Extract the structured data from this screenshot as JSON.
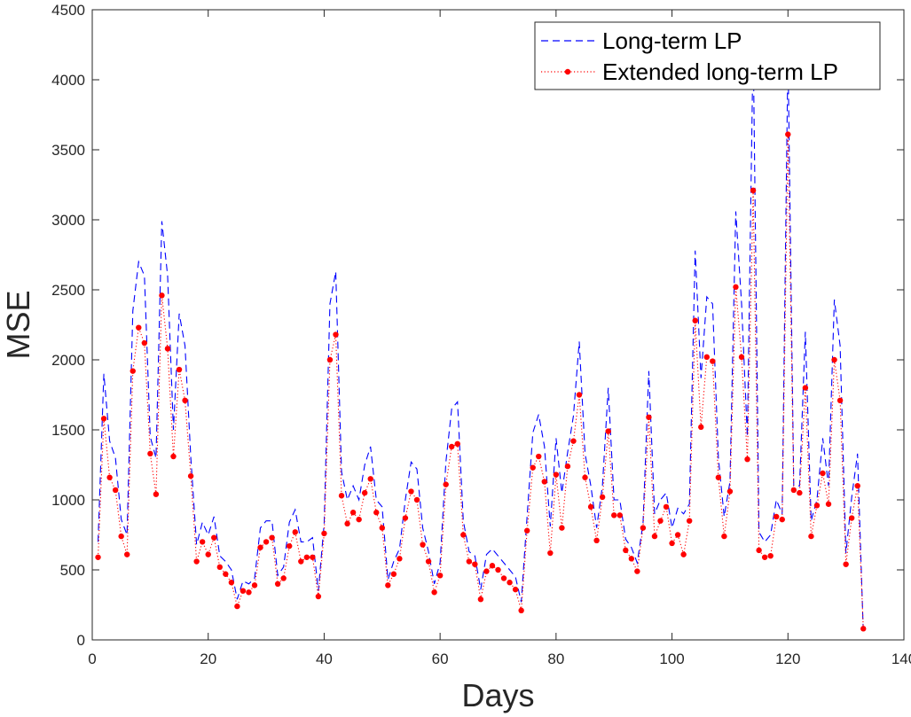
{
  "chart_data": {
    "type": "line",
    "xlabel": "Days",
    "ylabel": "MSE",
    "xlim": [
      0,
      140
    ],
    "ylim": [
      0,
      4500
    ],
    "xticks": [
      0,
      20,
      40,
      60,
      80,
      100,
      120,
      140
    ],
    "yticks": [
      0,
      500,
      1000,
      1500,
      2000,
      2500,
      3000,
      3500,
      4000,
      4500
    ],
    "legend_position": "top-right",
    "grid": false,
    "series": [
      {
        "name": "Long-term LP",
        "color": "#0000ff",
        "style": "dashed",
        "x": [
          1,
          2,
          3,
          4,
          5,
          6,
          7,
          8,
          9,
          10,
          11,
          12,
          13,
          14,
          15,
          16,
          17,
          18,
          19,
          20,
          21,
          22,
          23,
          24,
          25,
          26,
          27,
          28,
          29,
          30,
          31,
          32,
          33,
          34,
          35,
          36,
          37,
          38,
          39,
          40,
          41,
          42,
          43,
          44,
          45,
          46,
          47,
          48,
          49,
          50,
          51,
          52,
          53,
          54,
          55,
          56,
          57,
          58,
          59,
          60,
          61,
          62,
          63,
          64,
          65,
          66,
          67,
          68,
          69,
          70,
          71,
          72,
          73,
          74,
          75,
          76,
          77,
          78,
          79,
          80,
          81,
          82,
          83,
          84,
          85,
          86,
          87,
          88,
          89,
          90,
          91,
          92,
          93,
          94,
          95,
          96,
          97,
          98,
          99,
          100,
          101,
          102,
          103,
          104,
          105,
          106,
          107,
          108,
          109,
          110,
          111,
          112,
          113,
          114,
          115,
          116,
          117,
          118,
          119,
          120,
          121,
          122,
          123,
          124,
          125,
          126,
          127,
          128,
          129,
          130,
          131,
          132,
          133
        ],
        "y": [
          700,
          1900,
          1420,
          1300,
          860,
          750,
          2350,
          2700,
          2600,
          1450,
          1300,
          2990,
          2600,
          1500,
          2330,
          2100,
          1300,
          680,
          840,
          750,
          880,
          600,
          560,
          500,
          290,
          420,
          400,
          440,
          800,
          850,
          850,
          460,
          520,
          840,
          930,
          700,
          700,
          730,
          350,
          830,
          2400,
          2630,
          1200,
          1000,
          1100,
          1000,
          1250,
          1380,
          1000,
          950,
          430,
          560,
          650,
          1000,
          1270,
          1220,
          800,
          630,
          400,
          550,
          1270,
          1650,
          1700,
          850,
          630,
          600,
          360,
          610,
          650,
          600,
          550,
          500,
          450,
          270,
          880,
          1480,
          1610,
          1380,
          810,
          1440,
          1050,
          1340,
          1600,
          2130,
          1330,
          1100,
          800,
          1100,
          1800,
          1000,
          1000,
          720,
          660,
          550,
          830,
          1920,
          900,
          1000,
          1050,
          800,
          940,
          900,
          970,
          2780,
          1870,
          2450,
          2400,
          1300,
          880,
          1130,
          3060,
          2400,
          1450,
          4280,
          770,
          700,
          750,
          1000,
          900,
          4190,
          1100,
          1100,
          2200,
          850,
          1000,
          1440,
          1100,
          2430,
          2100,
          620,
          1020,
          1330,
          50
        ]
      },
      {
        "name": "Extended long-term LP",
        "color": "#ff0000",
        "style": "dotted",
        "x": [
          1,
          2,
          3,
          4,
          5,
          6,
          7,
          8,
          9,
          10,
          11,
          12,
          13,
          14,
          15,
          16,
          17,
          18,
          19,
          20,
          21,
          22,
          23,
          24,
          25,
          26,
          27,
          28,
          29,
          30,
          31,
          32,
          33,
          34,
          35,
          36,
          37,
          38,
          39,
          40,
          41,
          42,
          43,
          44,
          45,
          46,
          47,
          48,
          49,
          50,
          51,
          52,
          53,
          54,
          55,
          56,
          57,
          58,
          59,
          60,
          61,
          62,
          63,
          64,
          65,
          66,
          67,
          68,
          69,
          70,
          71,
          72,
          73,
          74,
          75,
          76,
          77,
          78,
          79,
          80,
          81,
          82,
          83,
          84,
          85,
          86,
          87,
          88,
          89,
          90,
          91,
          92,
          93,
          94,
          95,
          96,
          97,
          98,
          99,
          100,
          101,
          102,
          103,
          104,
          105,
          106,
          107,
          108,
          109,
          110,
          111,
          112,
          113,
          114,
          115,
          116,
          117,
          118,
          119,
          120,
          121,
          122,
          123,
          124,
          125,
          126,
          127,
          128,
          129,
          130,
          131,
          132,
          133
        ],
        "y": [
          590,
          1580,
          1160,
          1070,
          740,
          610,
          1920,
          2230,
          2120,
          1330,
          1040,
          2460,
          2080,
          1310,
          1930,
          1710,
          1170,
          560,
          700,
          610,
          730,
          520,
          470,
          410,
          240,
          350,
          340,
          390,
          660,
          700,
          730,
          400,
          440,
          670,
          770,
          560,
          590,
          590,
          310,
          760,
          2000,
          2180,
          1030,
          830,
          910,
          860,
          1050,
          1150,
          910,
          800,
          390,
          470,
          580,
          870,
          1060,
          1000,
          680,
          560,
          340,
          460,
          1110,
          1380,
          1400,
          750,
          560,
          540,
          290,
          490,
          530,
          500,
          440,
          410,
          360,
          210,
          780,
          1230,
          1310,
          1130,
          620,
          1180,
          800,
          1240,
          1420,
          1750,
          1160,
          950,
          710,
          1020,
          1490,
          890,
          890,
          640,
          580,
          490,
          800,
          1590,
          740,
          850,
          950,
          690,
          750,
          610,
          850,
          2280,
          1520,
          2020,
          1990,
          1160,
          740,
          1060,
          2520,
          2020,
          1290,
          3210,
          640,
          590,
          600,
          880,
          860,
          3610,
          1070,
          1050,
          1800,
          740,
          960,
          1190,
          970,
          2000,
          1710,
          540,
          870,
          1100,
          80
        ]
      }
    ]
  }
}
